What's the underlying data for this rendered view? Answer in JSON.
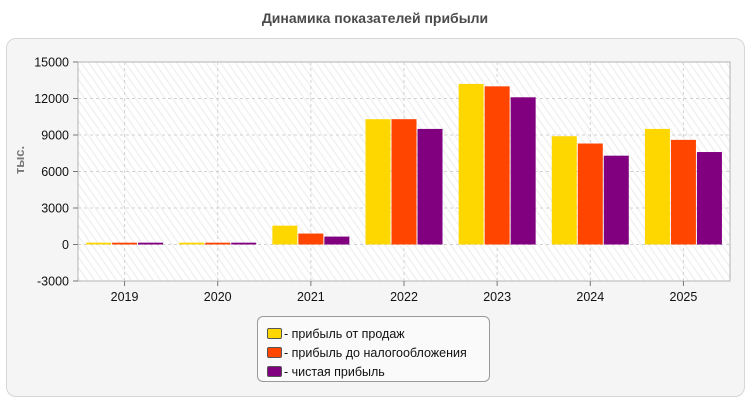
{
  "chart_data": {
    "type": "bar",
    "title": "Динамика показателей прибыли",
    "ylabel": "тыс.",
    "xlabel": "",
    "ylim": [
      -3000,
      15000
    ],
    "yticks": [
      -3000,
      0,
      3000,
      6000,
      9000,
      12000,
      15000
    ],
    "grid": true,
    "legend_position": "bottom-center",
    "categories": [
      "2019",
      "2020",
      "2021",
      "2022",
      "2023",
      "2024",
      "2025"
    ],
    "series": [
      {
        "name": "- прибыль от продаж",
        "color": "#FFD700",
        "values": [
          150,
          150,
          1550,
          10300,
          13200,
          8900,
          9500
        ]
      },
      {
        "name": "- прибыль до налогообложения",
        "color": "#FF4500",
        "values": [
          150,
          150,
          900,
          10300,
          13000,
          8300,
          8600
        ]
      },
      {
        "name": "- чистая прибыль",
        "color": "#800080",
        "values": [
          150,
          150,
          650,
          9500,
          12100,
          7300,
          7600
        ]
      }
    ]
  }
}
